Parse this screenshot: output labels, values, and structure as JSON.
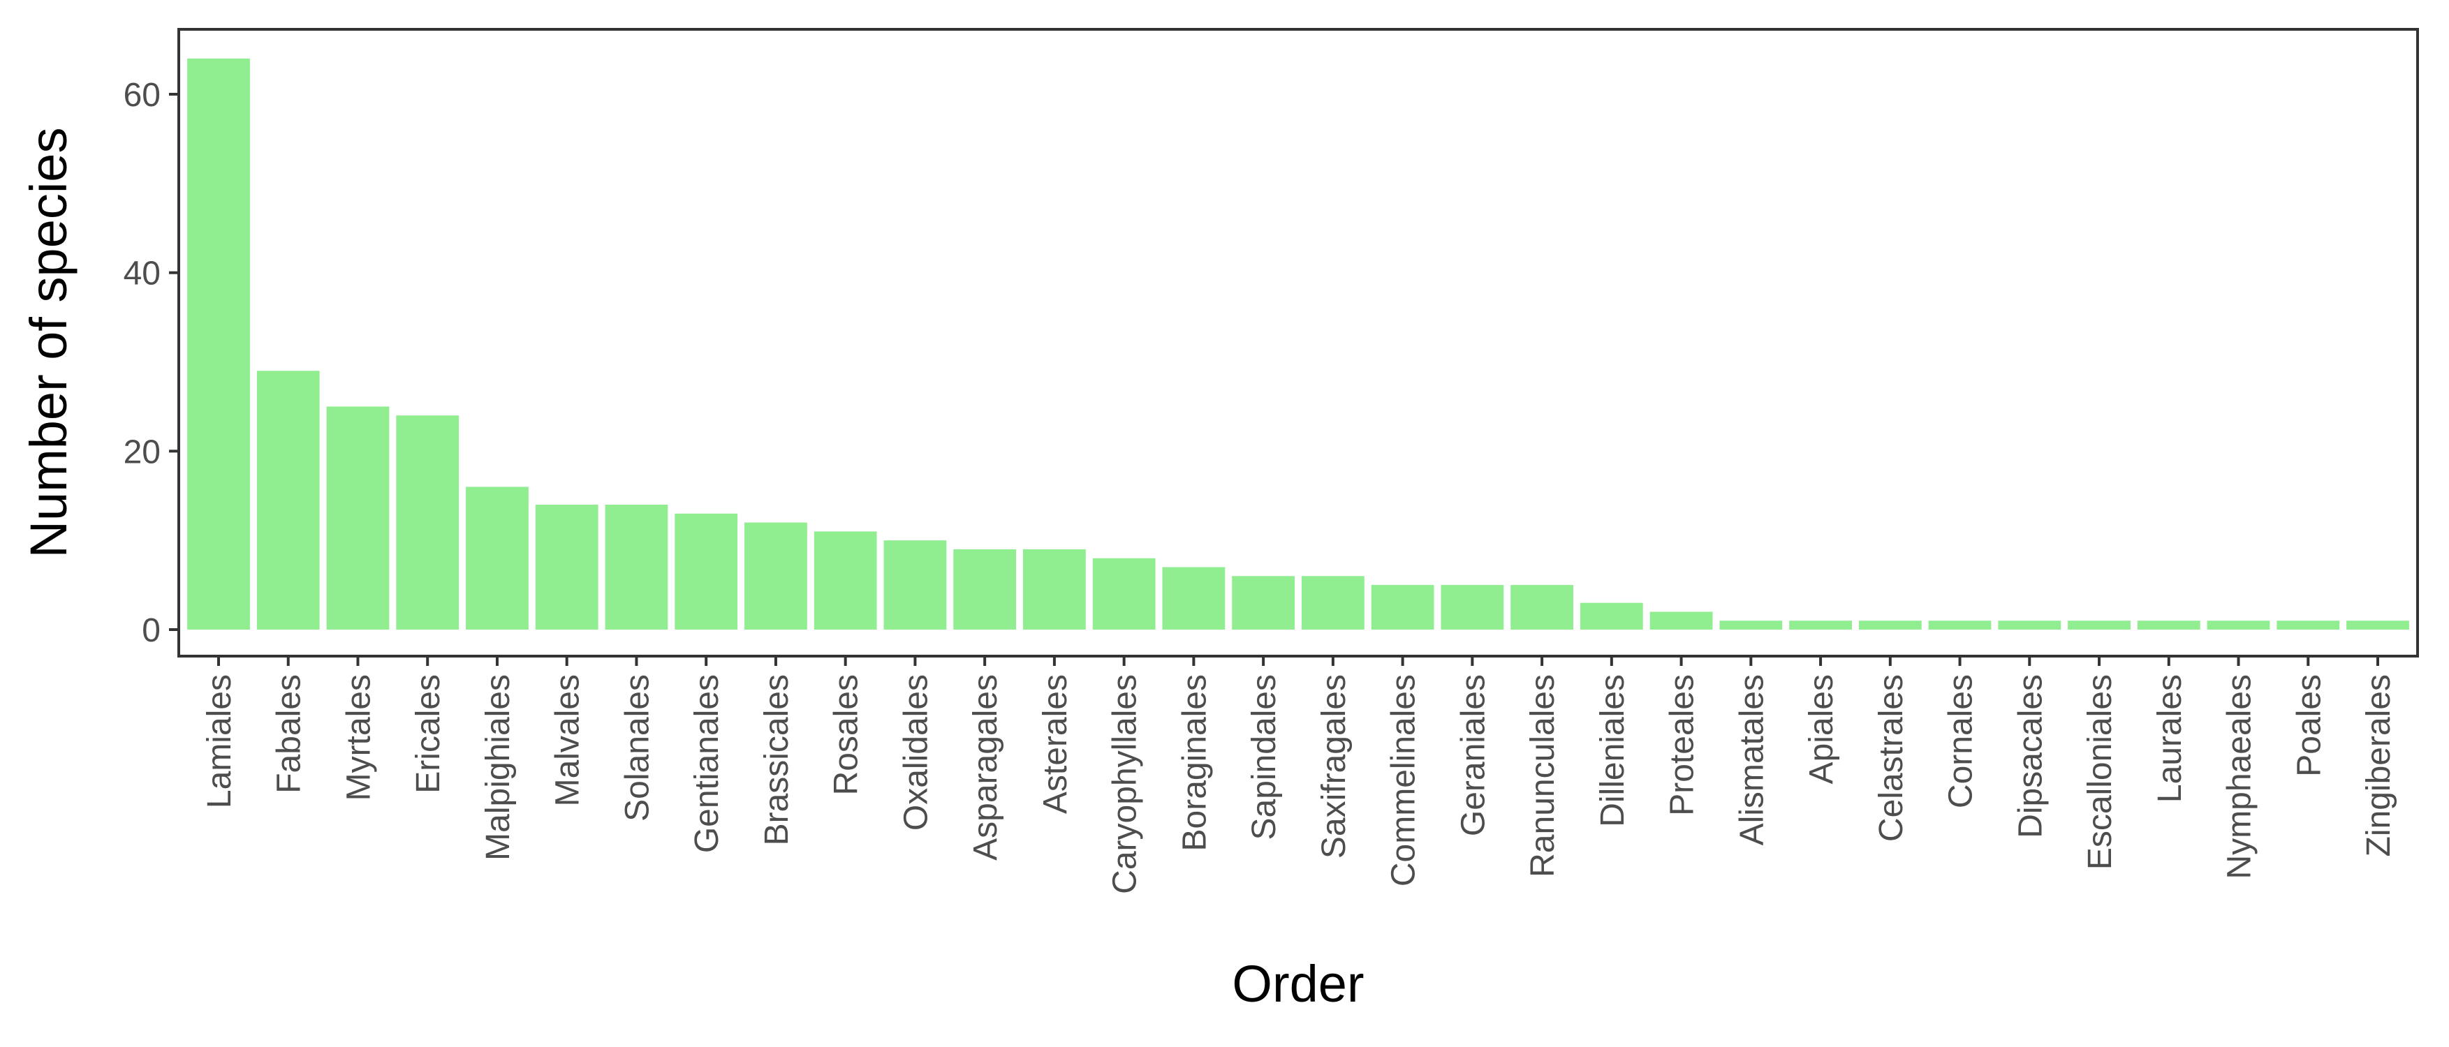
{
  "chart_data": {
    "type": "bar",
    "xlabel": "Order",
    "ylabel": "Number of species",
    "ylim": [
      0,
      66
    ],
    "yticks": [
      0,
      20,
      40,
      60
    ],
    "grid": false,
    "bar_color": "#90EE90",
    "categories": [
      "Lamiales",
      "Fabales",
      "Myrtales",
      "Ericales",
      "Malpighiales",
      "Malvales",
      "Solanales",
      "Gentianales",
      "Brassicales",
      "Rosales",
      "Oxalidales",
      "Asparagales",
      "Asterales",
      "Caryophyllales",
      "Boraginales",
      "Sapindales",
      "Saxifragales",
      "Commelinales",
      "Geraniales",
      "Ranunculales",
      "Dilleniales",
      "Proteales",
      "Alismatales",
      "Apiales",
      "Celastrales",
      "Cornales",
      "Dipsacales",
      "Escalloniales",
      "Laurales",
      "Nymphaeales",
      "Poales",
      "Zingiberales"
    ],
    "values": [
      64,
      29,
      25,
      24,
      16,
      14,
      14,
      13,
      12,
      11,
      10,
      9,
      9,
      8,
      7,
      6,
      6,
      5,
      5,
      5,
      3,
      2,
      1,
      1,
      1,
      1,
      1,
      1,
      1,
      1,
      1,
      1
    ]
  }
}
